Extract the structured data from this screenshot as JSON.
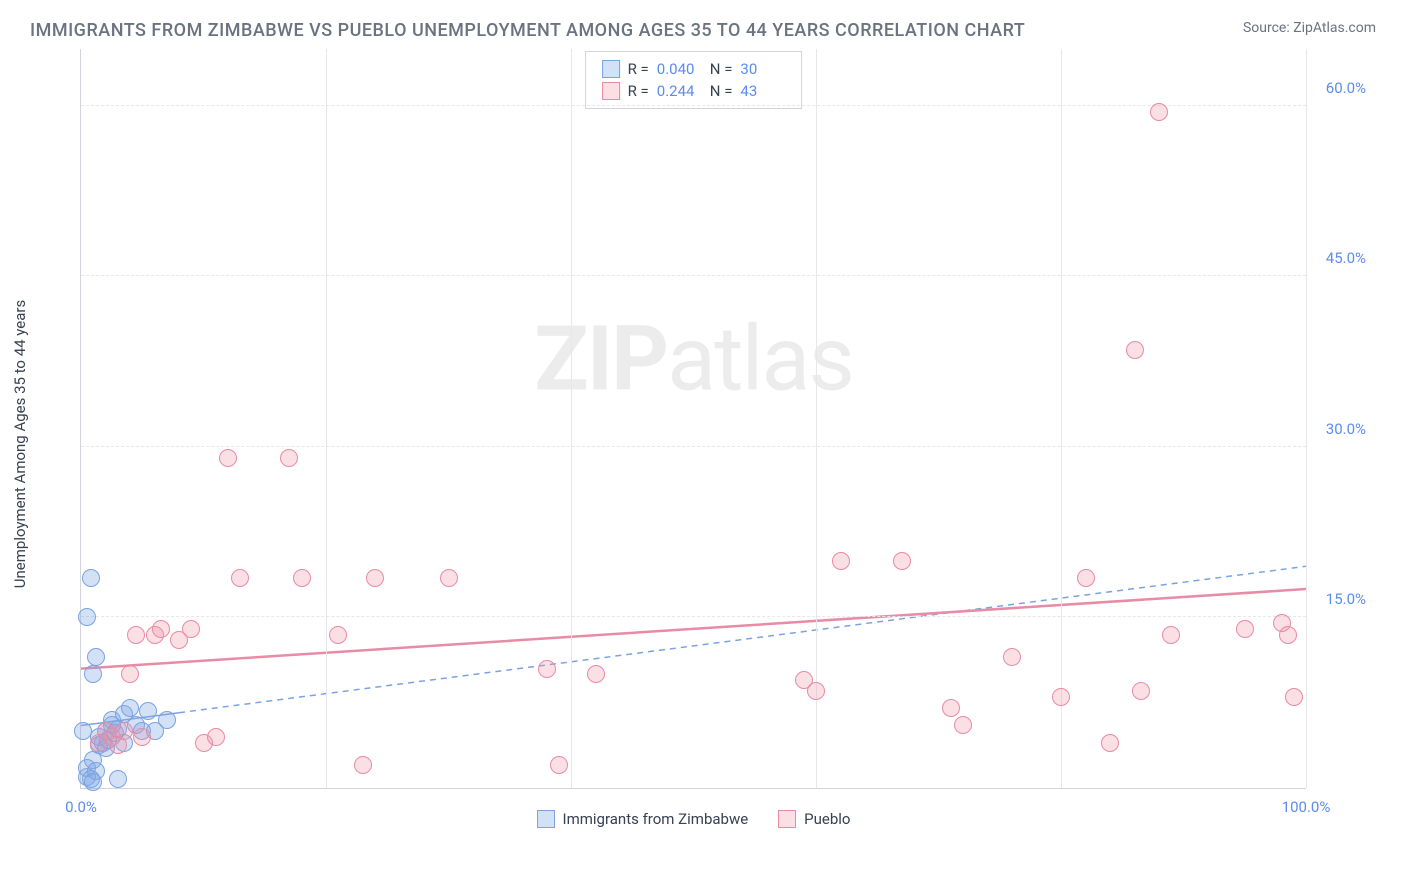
{
  "title": "IMMIGRANTS FROM ZIMBABWE VS PUEBLO UNEMPLOYMENT AMONG AGES 35 TO 44 YEARS CORRELATION CHART",
  "source": "Source: ZipAtlas.com",
  "watermark_bold": "ZIP",
  "watermark_light": "atlas",
  "chart": {
    "type": "scatter",
    "y_axis_label": "Unemployment Among Ages 35 to 44 years",
    "xlim": [
      0,
      100
    ],
    "ylim": [
      0,
      65
    ],
    "x_ticks": [
      0,
      20,
      40,
      60,
      80,
      100
    ],
    "y_ticks": [
      15,
      30,
      45,
      60
    ],
    "x_tick_labels": [
      "0.0%",
      "",
      "",
      "",
      "",
      "100.0%"
    ],
    "y_tick_labels": [
      "15.0%",
      "30.0%",
      "45.0%",
      "60.0%"
    ],
    "grid_color": "#e5e7eb",
    "background_color": "#ffffff",
    "axis_color": "#d1d5db",
    "tick_label_color": "#5b8def",
    "marker_size": 18,
    "series": [
      {
        "name": "Immigrants from Zimbabwe",
        "color_fill": "rgba(130,170,230,0.35)",
        "color_stroke": "#7aa3e0",
        "class": "blue",
        "R": "0.040",
        "N": "30",
        "trend": {
          "x1": 0,
          "y1": 5.5,
          "x2": 100,
          "y2": 19.5,
          "dash": "6,5",
          "color": "#7aa3e0",
          "width": 1.5,
          "solid_until_x": 8
        },
        "points": [
          [
            0.5,
            1.0
          ],
          [
            0.5,
            1.8
          ],
          [
            0.8,
            0.8
          ],
          [
            1.0,
            2.5
          ],
          [
            1.2,
            1.5
          ],
          [
            1.5,
            3.8
          ],
          [
            1.5,
            4.5
          ],
          [
            1.8,
            4.0
          ],
          [
            2.0,
            3.5
          ],
          [
            2.0,
            5.0
          ],
          [
            2.2,
            4.2
          ],
          [
            2.5,
            5.5
          ],
          [
            2.5,
            6.0
          ],
          [
            2.8,
            4.8
          ],
          [
            3.0,
            5.2
          ],
          [
            3.5,
            6.5
          ],
          [
            3.5,
            4.0
          ],
          [
            4.0,
            7.0
          ],
          [
            4.5,
            5.5
          ],
          [
            5.0,
            5.0
          ],
          [
            5.5,
            6.8
          ],
          [
            1.0,
            10.0
          ],
          [
            1.2,
            11.5
          ],
          [
            0.5,
            15.0
          ],
          [
            0.8,
            18.5
          ],
          [
            0.2,
            5.0
          ],
          [
            1.0,
            0.5
          ],
          [
            3.0,
            0.8
          ],
          [
            6.0,
            5.0
          ],
          [
            7.0,
            6.0
          ]
        ]
      },
      {
        "name": "Pueblo",
        "color_fill": "rgba(240,150,170,0.3)",
        "color_stroke": "#e88ba5",
        "class": "pink",
        "R": "0.244",
        "N": "43",
        "trend": {
          "x1": 0,
          "y1": 10.5,
          "x2": 100,
          "y2": 17.5,
          "dash": "none",
          "color": "#e88ba5",
          "width": 2.5
        },
        "points": [
          [
            1.5,
            4.0
          ],
          [
            2.0,
            5.0
          ],
          [
            2.5,
            4.5
          ],
          [
            3.0,
            3.8
          ],
          [
            3.5,
            5.0
          ],
          [
            4.0,
            10.0
          ],
          [
            4.5,
            13.5
          ],
          [
            5.0,
            4.5
          ],
          [
            6.0,
            13.5
          ],
          [
            6.5,
            14.0
          ],
          [
            8.0,
            13.0
          ],
          [
            9.0,
            14.0
          ],
          [
            10.0,
            4.0
          ],
          [
            11.0,
            4.5
          ],
          [
            12.0,
            29.0
          ],
          [
            13.0,
            18.5
          ],
          [
            17.0,
            29.0
          ],
          [
            18.0,
            18.5
          ],
          [
            21.0,
            13.5
          ],
          [
            23.0,
            2.0
          ],
          [
            24.0,
            18.5
          ],
          [
            30.0,
            18.5
          ],
          [
            38.0,
            10.5
          ],
          [
            39.0,
            2.0
          ],
          [
            42.0,
            10.0
          ],
          [
            59.0,
            9.5
          ],
          [
            60.0,
            8.5
          ],
          [
            62.0,
            20.0
          ],
          [
            67.0,
            20.0
          ],
          [
            71.0,
            7.0
          ],
          [
            72.0,
            5.5
          ],
          [
            76.0,
            11.5
          ],
          [
            80.0,
            8.0
          ],
          [
            82.0,
            18.5
          ],
          [
            84.0,
            4.0
          ],
          [
            86.0,
            38.5
          ],
          [
            86.5,
            8.5
          ],
          [
            88.0,
            59.5
          ],
          [
            89.0,
            13.5
          ],
          [
            95.0,
            14.0
          ],
          [
            98.0,
            14.5
          ],
          [
            98.5,
            13.5
          ],
          [
            99.0,
            8.0
          ]
        ]
      }
    ],
    "legend_bottom": [
      {
        "label": "Immigrants from Zimbabwe",
        "class": "blue"
      },
      {
        "label": "Pueblo",
        "class": "pink"
      }
    ]
  }
}
